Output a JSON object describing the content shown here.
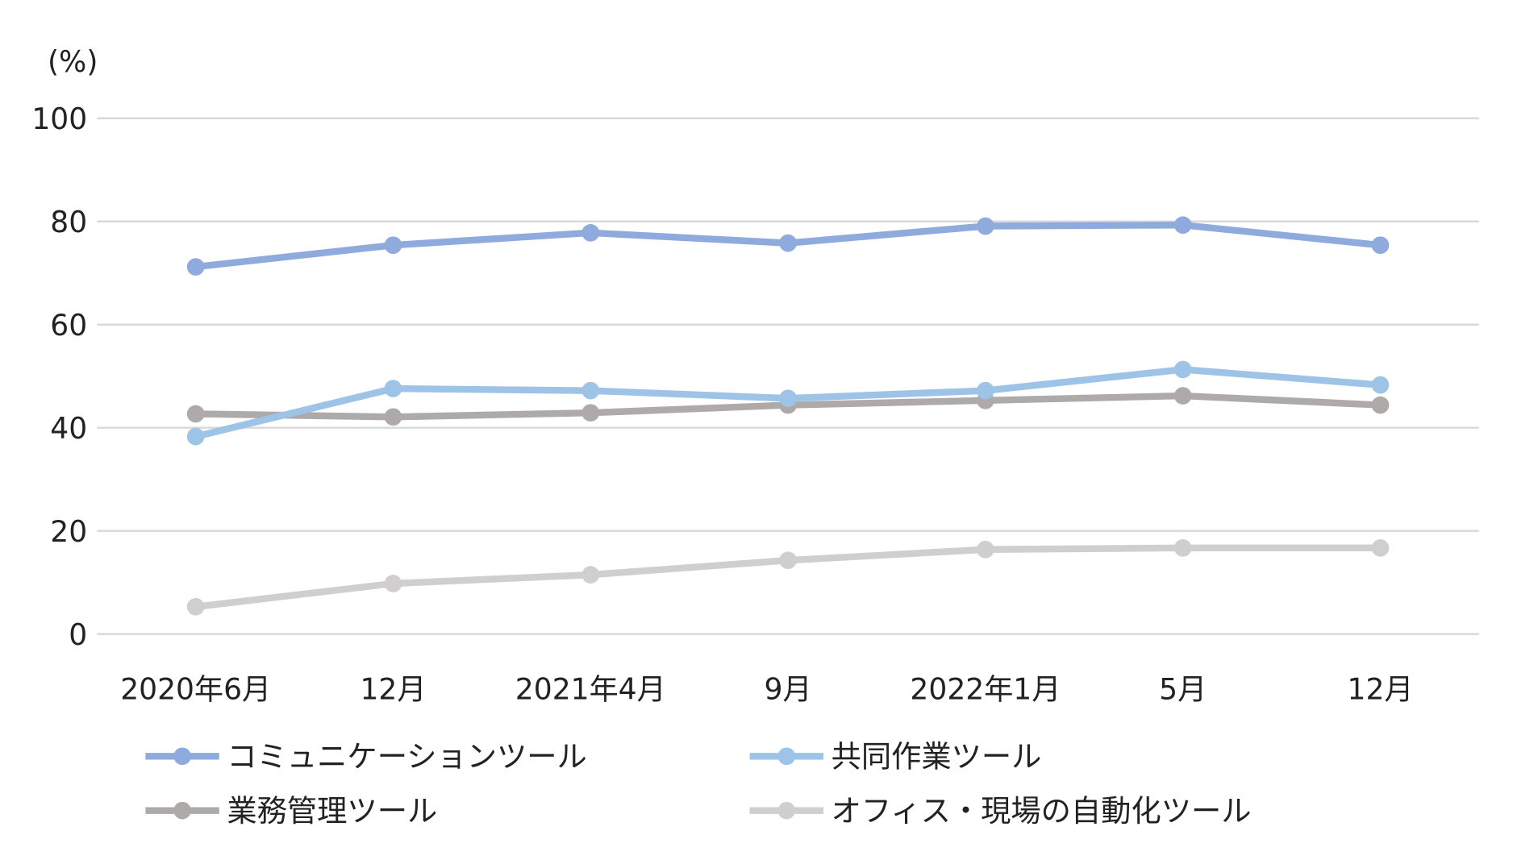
{
  "chart_data": {
    "type": "line",
    "ylabel": "(%)",
    "ylim": [
      0,
      100
    ],
    "yticks": [
      "0",
      "20",
      "40",
      "60",
      "80",
      "100"
    ],
    "grid": true,
    "legend_position": "bottom",
    "categories": [
      "2020年6月",
      "12月",
      "2021年4月",
      "9月",
      "2022年1月",
      "5月",
      "12月"
    ],
    "series": [
      {
        "name": "コミュニケーションツール",
        "color": "#8faadc",
        "values": [
          71.2,
          75.4,
          77.8,
          75.8,
          79.1,
          79.3,
          75.4
        ]
      },
      {
        "name": "共同作業ツール",
        "color": "#9dc3e6",
        "values": [
          38.3,
          47.6,
          47.2,
          45.7,
          47.2,
          51.3,
          48.3
        ]
      },
      {
        "name": "業務管理ツール",
        "color": "#aeaaaa",
        "values": [
          42.7,
          42.1,
          42.9,
          44.4,
          45.3,
          46.2,
          44.4
        ]
      },
      {
        "name": "オフィス・現場の自動化ツール",
        "color": "#d0cece",
        "values": [
          5.3,
          9.8,
          11.5,
          14.3,
          16.4,
          16.7,
          16.7
        ]
      }
    ]
  }
}
